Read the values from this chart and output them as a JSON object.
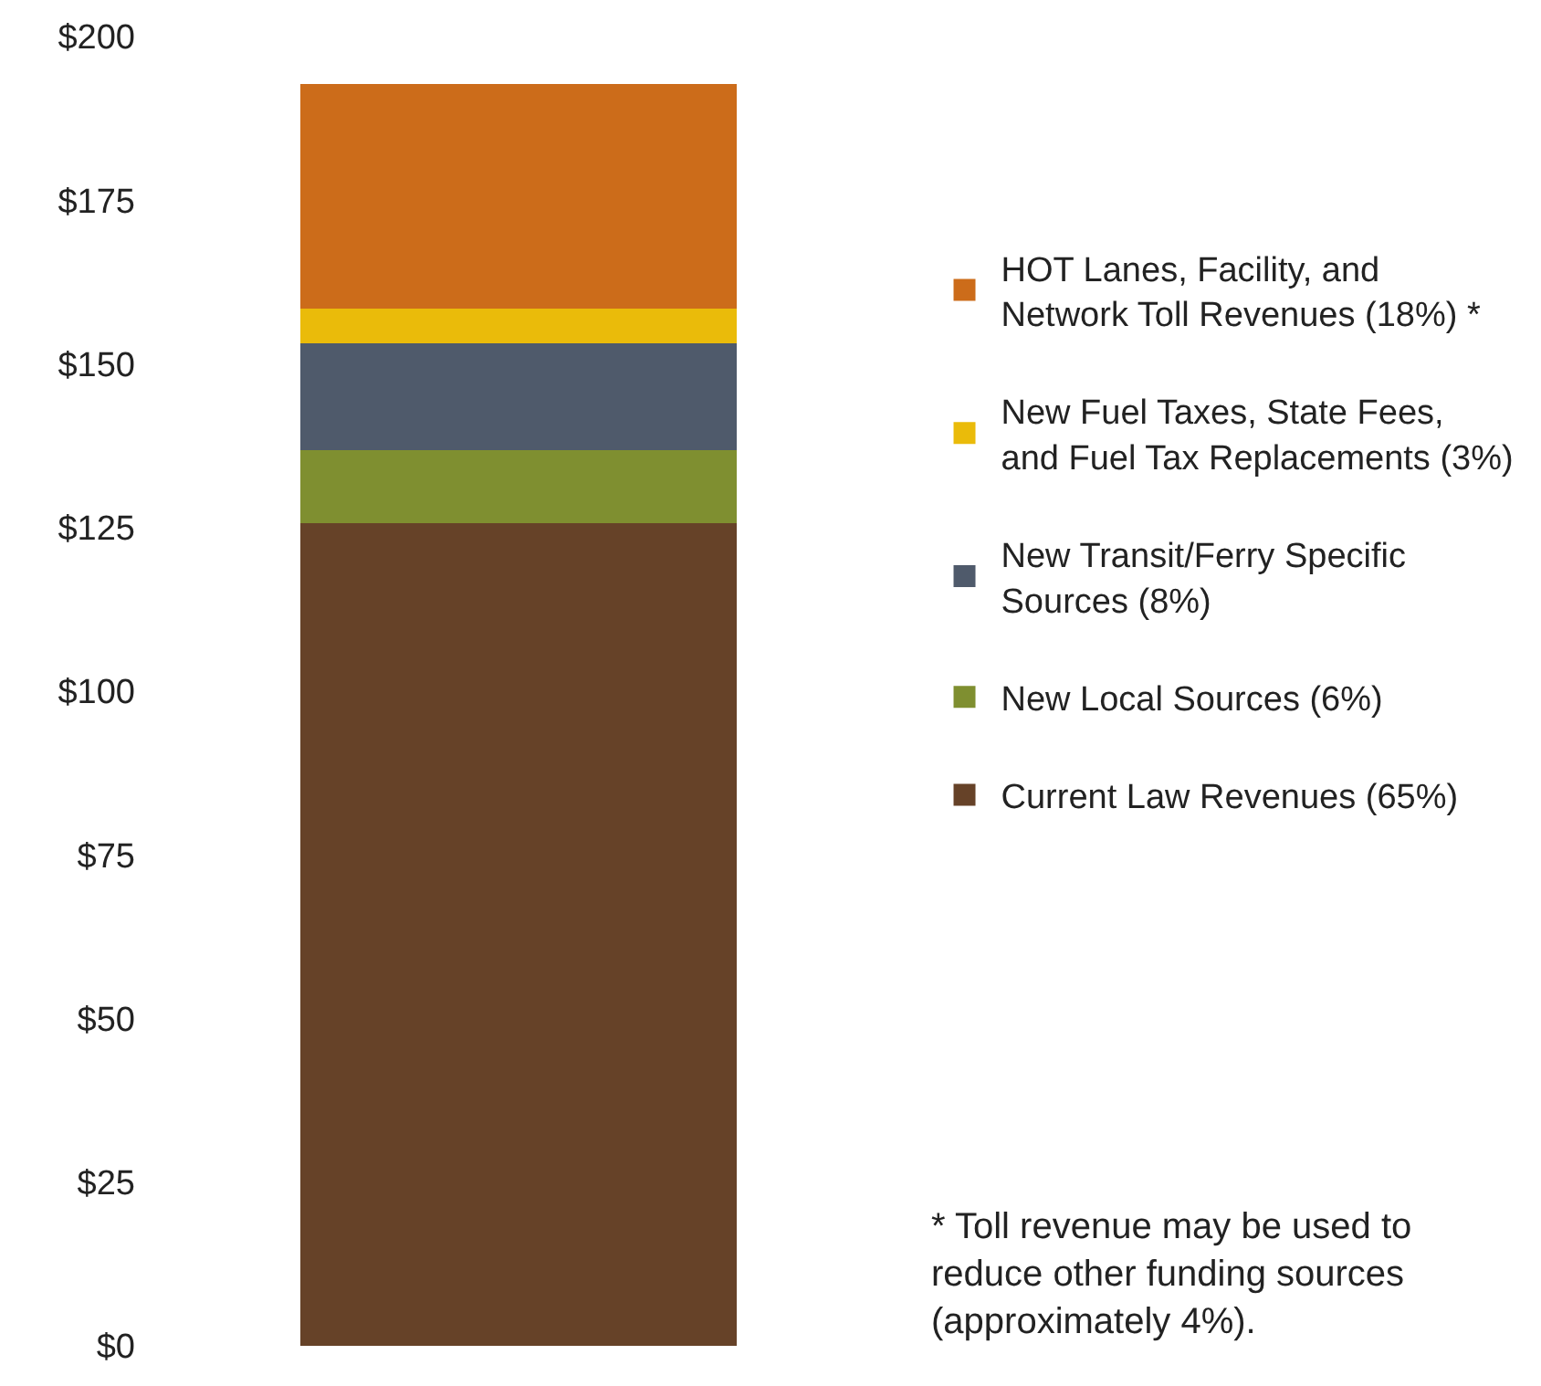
{
  "chart_data": {
    "type": "bar",
    "stacked": true,
    "categories": [
      null
    ],
    "series": [
      {
        "name": "Current Law Revenues (65%)",
        "color": "#664228",
        "values": [
          125.7
        ]
      },
      {
        "name": "New Local Sources (6%)",
        "color": "#7f8f30",
        "values": [
          11.1
        ]
      },
      {
        "name": "New Transit/Ferry Specific\nSources (8%)",
        "color": "#4f5a6b",
        "values": [
          16.3
        ]
      },
      {
        "name": "New Fuel Taxes, State Fees,\nand Fuel Tax Replacements (3%)",
        "color": "#eabb0a",
        "values": [
          5.3
        ]
      },
      {
        "name": "HOT Lanes, Facility, and\nNetwork Toll Revenues (18%) *",
        "color": "#cc6c1a",
        "values": [
          34.4
        ]
      }
    ],
    "ylim": [
      0,
      200
    ],
    "yticks": [
      {
        "value": 0,
        "label": "$0"
      },
      {
        "value": 25,
        "label": "$25"
      },
      {
        "value": 50,
        "label": "$50"
      },
      {
        "value": 75,
        "label": "$75"
      },
      {
        "value": 100,
        "label": "$100"
      },
      {
        "value": 125,
        "label": "$125"
      },
      {
        "value": 150,
        "label": "$150"
      },
      {
        "value": 175,
        "label": "$175"
      },
      {
        "value": 200,
        "label": "$200"
      }
    ],
    "legend": "right",
    "annotations": [
      "* Toll revenue may be used to\nreduce other funding sources\n(approximately 4%)."
    ]
  }
}
